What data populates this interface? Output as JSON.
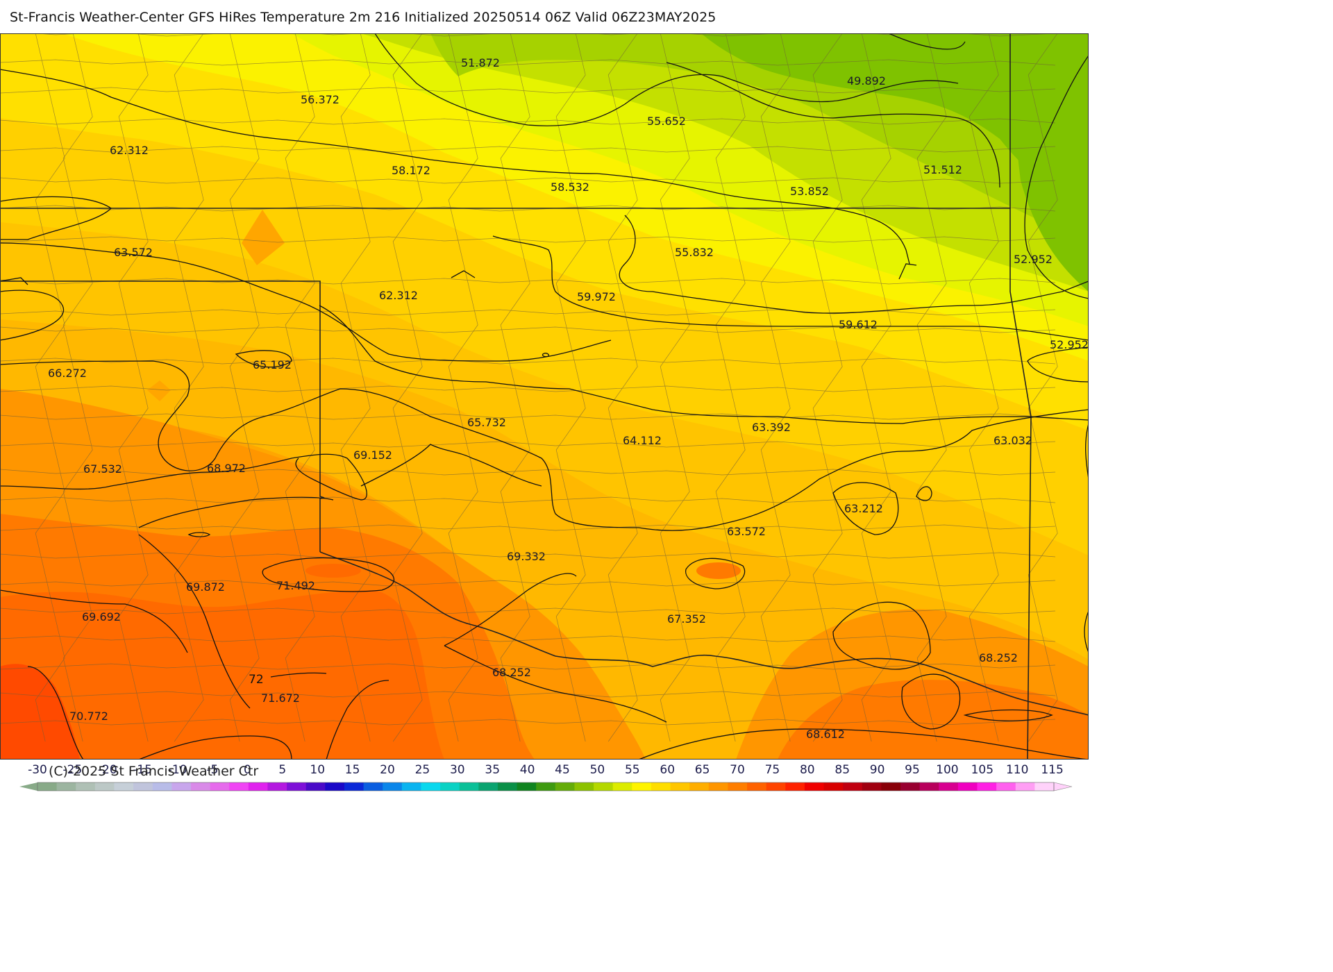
{
  "title": "St-Francis Weather-Center GFS HiRes Temperature 2m  216 Initialized 20250514 06Z Valid 06Z23MAY2025",
  "copyright": "(C)-2025 St Francis Weather Ctr",
  "colors": {
    "t48": "#7fc200",
    "t50": "#a6d200",
    "t52": "#c4e000",
    "t54": "#e6f400",
    "t56": "#fbf200",
    "t58": "#ffe000",
    "t60": "#ffd000",
    "t62": "#ffc400",
    "t64": "#ffb800",
    "t66": "#ffa600",
    "t68": "#ff9600",
    "t70": "#ff7a00",
    "t72": "#ff6a00",
    "t74": "#ff4a00"
  },
  "temperature_labels": [
    {
      "text": "51.872"
    },
    {
      "text": "49.892"
    },
    {
      "text": "56.372"
    },
    {
      "text": "55.652"
    },
    {
      "text": "62.312"
    },
    {
      "text": "58.172"
    },
    {
      "text": "58.532"
    },
    {
      "text": "53.852"
    },
    {
      "text": "51.512"
    },
    {
      "text": "63.572"
    },
    {
      "text": "55.832"
    },
    {
      "text": "52.952"
    },
    {
      "text": "62.312"
    },
    {
      "text": "59.972"
    },
    {
      "text": "59.612"
    },
    {
      "text": "52.952"
    },
    {
      "text": "66.272"
    },
    {
      "text": "65.192"
    },
    {
      "text": "65.732"
    },
    {
      "text": "64.112"
    },
    {
      "text": "63.392"
    },
    {
      "text": "63.032"
    },
    {
      "text": "67.532"
    },
    {
      "text": "68.972"
    },
    {
      "text": "69.152"
    },
    {
      "text": "63.212"
    },
    {
      "text": "63.572"
    },
    {
      "text": "69.332"
    },
    {
      "text": "69.872"
    },
    {
      "text": "71.492"
    },
    {
      "text": "67.352"
    },
    {
      "text": "69.692"
    },
    {
      "text": "68.252"
    },
    {
      "text": "68.252"
    },
    {
      "text": "70.772"
    },
    {
      "text": "71.672"
    },
    {
      "text": "68.612"
    }
  ],
  "contour_label": "72",
  "colorbar": {
    "ticks": [
      "-30",
      "-25",
      "-20",
      "-15",
      "-10",
      "-5",
      "0",
      "5",
      "10",
      "15",
      "20",
      "25",
      "30",
      "35",
      "40",
      "45",
      "50",
      "55",
      "60",
      "65",
      "70",
      "75",
      "80",
      "85",
      "90",
      "95",
      "100",
      "105",
      "110",
      "115"
    ],
    "colors": [
      "#88aa88",
      "#9cb5a0",
      "#afc0b5",
      "#bcc8c6",
      "#c6cfd8",
      "#c0c4dc",
      "#b8bce8",
      "#c8a6ec",
      "#d98ae8",
      "#e66aec",
      "#f044f4",
      "#e022ee",
      "#b418e0",
      "#7e10d8",
      "#4a0ac8",
      "#1a08c8",
      "#0a28d8",
      "#0a5ee0",
      "#0a86ea",
      "#0ab4f0",
      "#0ad8ee",
      "#0ad2c4",
      "#0ac098",
      "#0aa470",
      "#0a9048",
      "#108420",
      "#3e9a10",
      "#64ac08",
      "#8cc200",
      "#b4d800",
      "#dcec00",
      "#fff400",
      "#ffde00",
      "#ffc600",
      "#ffae00",
      "#ff9600",
      "#ff7e00",
      "#ff6200",
      "#ff4400",
      "#ff2200",
      "#f00000",
      "#d80000",
      "#c00010",
      "#a00010",
      "#880008",
      "#980030",
      "#b8005c",
      "#d80090",
      "#f000c0",
      "#ff20e4",
      "#ff60ee",
      "#ff9ef4",
      "#ffd2fa"
    ]
  }
}
